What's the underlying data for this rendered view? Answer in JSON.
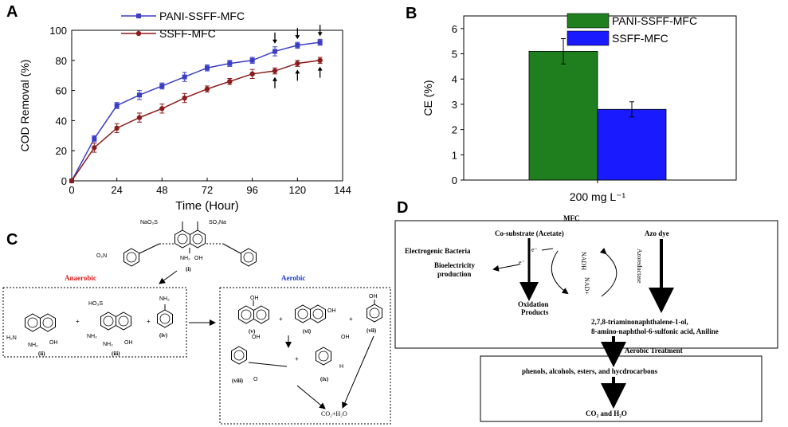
{
  "panels": {
    "a": "A",
    "b": "B",
    "c": "C",
    "d": "D"
  },
  "chart_data": [
    {
      "panel": "A",
      "type": "line",
      "xlabel": "Time (Hour)",
      "ylabel": "COD Removal (%)",
      "xlim": [
        0,
        144
      ],
      "ylim": [
        0,
        100
      ],
      "xticks": [
        "0",
        "24",
        "48",
        "72",
        "96",
        "120",
        "144"
      ],
      "yticks": [
        "0",
        "20",
        "40",
        "60",
        "80",
        "100"
      ],
      "x": [
        0,
        12,
        24,
        36,
        48,
        60,
        72,
        84,
        96,
        108,
        120,
        132
      ],
      "series": [
        {
          "name": "PANI-SSFF-MFC",
          "color": "#3a3ec4",
          "values": [
            0,
            28,
            50,
            57,
            63,
            69,
            75,
            78,
            80,
            86,
            90,
            92
          ],
          "errors": [
            0,
            2,
            2,
            3,
            2,
            3,
            2,
            2,
            2,
            3,
            2,
            2
          ]
        },
        {
          "name": "SSFF-MFC",
          "color": "#8b1c1c",
          "values": [
            0,
            22,
            35,
            42,
            48,
            55,
            61,
            66,
            71,
            73,
            78,
            80
          ],
          "errors": [
            0,
            3,
            3,
            3,
            3,
            3,
            2,
            2,
            3,
            2,
            2,
            2
          ]
        }
      ],
      "arrows_down_at": [
        108,
        120,
        132
      ],
      "arrows_up_at": [
        108,
        120,
        132
      ],
      "legend": "top-left",
      "grid": false
    },
    {
      "panel": "B",
      "type": "bar",
      "categories": [
        "200 mg L⁻¹"
      ],
      "ylabel": "CE (%)",
      "ylim": [
        0,
        6.5
      ],
      "yticks": [
        "0",
        "1",
        "2",
        "3",
        "4",
        "5",
        "6"
      ],
      "series": [
        {
          "name": "PANI-SSFF-MFC",
          "color": "#1f7f1f",
          "values": [
            5.1
          ],
          "errors": [
            0.5
          ]
        },
        {
          "name": "SSFF-MFC",
          "color": "#1a1aff",
          "values": [
            2.8
          ],
          "errors": [
            0.3
          ]
        }
      ],
      "legend": "top-right",
      "grid": false
    }
  ],
  "panel_c": {
    "compound_i": {
      "so3na_left": "NaO₃S",
      "so3na_right": "SO₃Na",
      "nh2": "NH₂",
      "oh": "OH",
      "no2": "O₂N",
      "label": "(i)"
    },
    "anaerobic": {
      "title": "Anaerobic",
      "h2n": "H₂N",
      "nh2_a": "NH₂",
      "oh_a": "OH",
      "label_ii": "(ii)",
      "ho3s": "HO₃S",
      "nh2_b": "NH₂",
      "nh2_c": "NH₂",
      "oh_b": "OH",
      "label_iii": "(iii)",
      "nh2_d": "NH₂",
      "label_iv": "(iv)",
      "plus": "+"
    },
    "aerobic": {
      "title": "Aerobic",
      "label_v": "(v)",
      "label_vi": "(vi)",
      "label_vii": "(vii)",
      "label_viii": "(viii)",
      "label_ix": "(ix)",
      "oh": "OH",
      "o": "O",
      "h": "H",
      "product": "CO₂+H₂O",
      "plus": "+"
    }
  },
  "panel_d": {
    "mfc_title": "MFC",
    "cosubstrate": "Co-substrate (Acetate)",
    "azo_dye": "Azo dye",
    "electrogenic": "Electrogenic Bacteria",
    "e_minus_1": "e⁻",
    "e_minus_2": "e⁻",
    "bioelectricity_1": "Bioelectricity",
    "bioelectricity_2": "production",
    "nadh": "NADH",
    "nad_plus": "NAD+",
    "azoreductase": "Azoreductase",
    "oxidation_1": "Oxidation",
    "oxidation_2": "Products",
    "products_1": "2,7,8-triaminonaphthalene-1-ol,",
    "products_2": "8-amino-naphthol-6-sulfonic acid, Aniline",
    "aerobic_treatment": "Aerobic Treatment",
    "phenols": "phenols, alcohols, esters, and hycdrocarbons",
    "final": "CO₂ and H₂O"
  }
}
